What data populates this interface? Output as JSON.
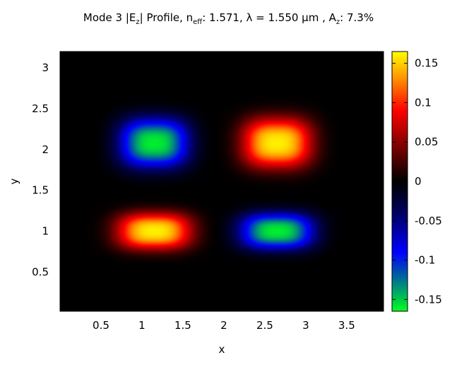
{
  "title": {
    "prefix": "Mode 3 |E",
    "prefix_sub": "z",
    "mid1": "| Profile, n",
    "mid1_sub": "eff",
    "mid2": ": 1.571, λ = 1.550 µm , A",
    "mid2_sub": "z",
    "suffix": ": 7.3%"
  },
  "chart_data": {
    "type": "heatmap",
    "title": "Mode 3 |Ez| Profile, neff: 1.571, λ = 1.550 µm , Az: 7.3%",
    "xlabel": "x",
    "ylabel": "y",
    "xlim": [
      0,
      3.95
    ],
    "ylim": [
      0.02,
      3.2
    ],
    "xticks": [
      "0.5",
      "1",
      "1.5",
      "2",
      "2.5",
      "3",
      "3.5"
    ],
    "xtick_values": [
      0.5,
      1,
      1.5,
      2,
      2.5,
      3,
      3.5
    ],
    "yticks": [
      "0.5",
      "1",
      "1.5",
      "2",
      "2.5",
      "3"
    ],
    "ytick_values": [
      0.5,
      1,
      1.5,
      2,
      2.5,
      3
    ],
    "colorbar": {
      "range": [
        -0.165,
        0.165
      ],
      "ticks": [
        "0.15",
        "0.1",
        "0.05",
        "0",
        "-0.05",
        "-0.1",
        "-0.15"
      ],
      "tick_values": [
        0.15,
        0.1,
        0.05,
        0,
        -0.05,
        -0.1,
        -0.15
      ],
      "colormap": [
        [
          -0.165,
          "#00ff20"
        ],
        [
          -0.12,
          "#0060a0"
        ],
        [
          -0.09,
          "#0000ff"
        ],
        [
          -0.04,
          "#000060"
        ],
        [
          0,
          "#000000"
        ],
        [
          0.04,
          "#700000"
        ],
        [
          0.09,
          "#ff0000"
        ],
        [
          0.13,
          "#ff9000"
        ],
        [
          0.165,
          "#ffff00"
        ]
      ]
    },
    "lobes": [
      {
        "x": 1.15,
        "y": 2.08,
        "amplitude": -0.16,
        "sx": 0.42,
        "sy": 0.3
      },
      {
        "x": 2.65,
        "y": 2.08,
        "amplitude": 0.16,
        "sx": 0.42,
        "sy": 0.3
      },
      {
        "x": 1.15,
        "y": 1.0,
        "amplitude": 0.16,
        "sx": 0.45,
        "sy": 0.22
      },
      {
        "x": 2.65,
        "y": 1.0,
        "amplitude": -0.16,
        "sx": 0.45,
        "sy": 0.22
      }
    ]
  }
}
